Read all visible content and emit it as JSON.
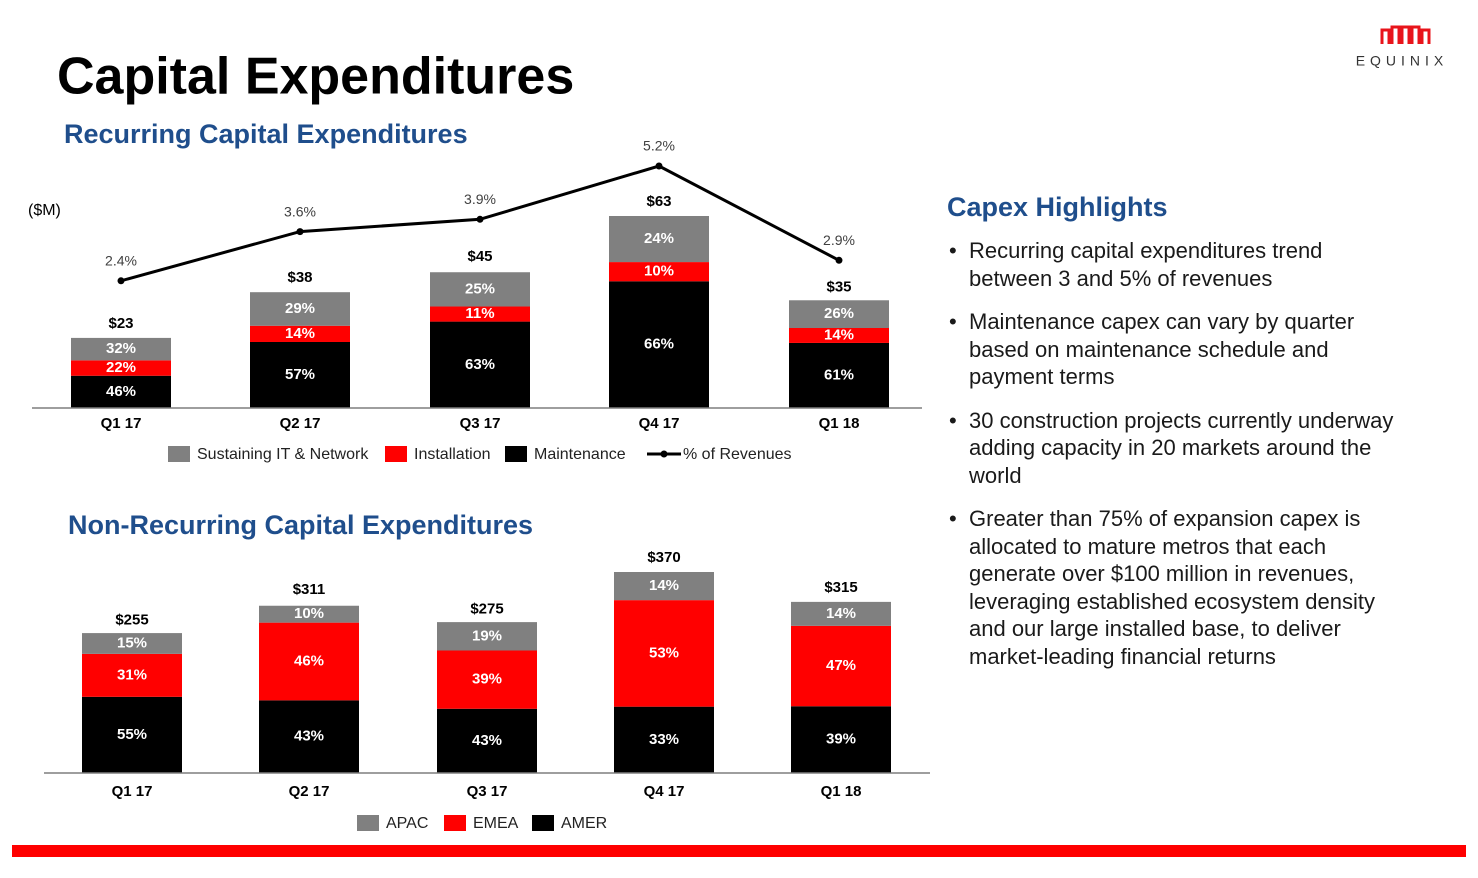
{
  "title": "Capital Expenditures",
  "logo": "EQUINIX",
  "chart_data": [
    {
      "type": "bar",
      "stacked": true,
      "title": "Recurring Capital Expenditures",
      "y_label": "($M)",
      "categories": [
        "Q1 17",
        "Q2 17",
        "Q3 17",
        "Q4 17",
        "Q1 18"
      ],
      "totals": {
        "values": [
          23,
          38,
          45,
          63,
          35
        ],
        "value_labels": [
          "$23",
          "$38",
          "$45",
          "$63",
          "$35"
        ]
      },
      "series": [
        {
          "name": "Sustaining IT & Network",
          "color": "#808080",
          "values": [
            32,
            29,
            25,
            24,
            26
          ],
          "value_labels": [
            "32%",
            "29%",
            "25%",
            "24%",
            "26%"
          ]
        },
        {
          "name": "Installation",
          "color": "#ff0000",
          "values": [
            22,
            14,
            11,
            10,
            14
          ],
          "value_labels": [
            "22%",
            "14%",
            "11%",
            "10%",
            "14%"
          ]
        },
        {
          "name": "Maintenance",
          "color": "#000000",
          "values": [
            46,
            57,
            63,
            66,
            61
          ],
          "value_labels": [
            "46%",
            "57%",
            "63%",
            "66%",
            "61%"
          ]
        },
        {
          "name": "% of Revenues",
          "type": "line",
          "color": "#000000",
          "values": [
            2.4,
            3.6,
            3.9,
            5.2,
            2.9
          ],
          "value_labels": [
            "2.4%",
            "3.6%",
            "3.9%",
            "5.2%",
            "2.9%"
          ]
        }
      ]
    },
    {
      "type": "bar",
      "stacked": true,
      "title": "Non-Recurring Capital Expenditures",
      "categories": [
        "Q1 17",
        "Q2 17",
        "Q3 17",
        "Q4 17",
        "Q1 18"
      ],
      "totals": {
        "values": [
          255,
          311,
          275,
          370,
          315
        ],
        "value_labels": [
          "$255",
          "$311",
          "$275",
          "$370",
          "$315"
        ]
      },
      "series": [
        {
          "name": "APAC",
          "color": "#808080",
          "values": [
            15,
            10,
            19,
            14,
            14
          ],
          "value_labels": [
            "15%",
            "10%",
            "19%",
            "14%",
            "14%"
          ]
        },
        {
          "name": "EMEA",
          "color": "#ff0000",
          "values": [
            31,
            46,
            39,
            53,
            47
          ],
          "value_labels": [
            "31%",
            "46%",
            "39%",
            "53%",
            "47%"
          ]
        },
        {
          "name": "AMER",
          "color": "#000000",
          "values": [
            55,
            43,
            43,
            33,
            39
          ],
          "value_labels": [
            "55%",
            "43%",
            "43%",
            "33%",
            "39%"
          ]
        }
      ]
    }
  ],
  "highlights": {
    "title": "Capex Highlights",
    "bullets": [
      "Recurring capital expenditures trend between 3 and 5% of revenues",
      "Maintenance capex can vary by quarter based on maintenance schedule and payment terms",
      "30 construction projects currently underway adding capacity in 20 markets around the world",
      "Greater than 75% of expansion capex is allocated to mature metros that each generate over $100 million in revenues, leveraging established ecosystem density and our large installed base, to deliver market-leading financial returns"
    ]
  }
}
